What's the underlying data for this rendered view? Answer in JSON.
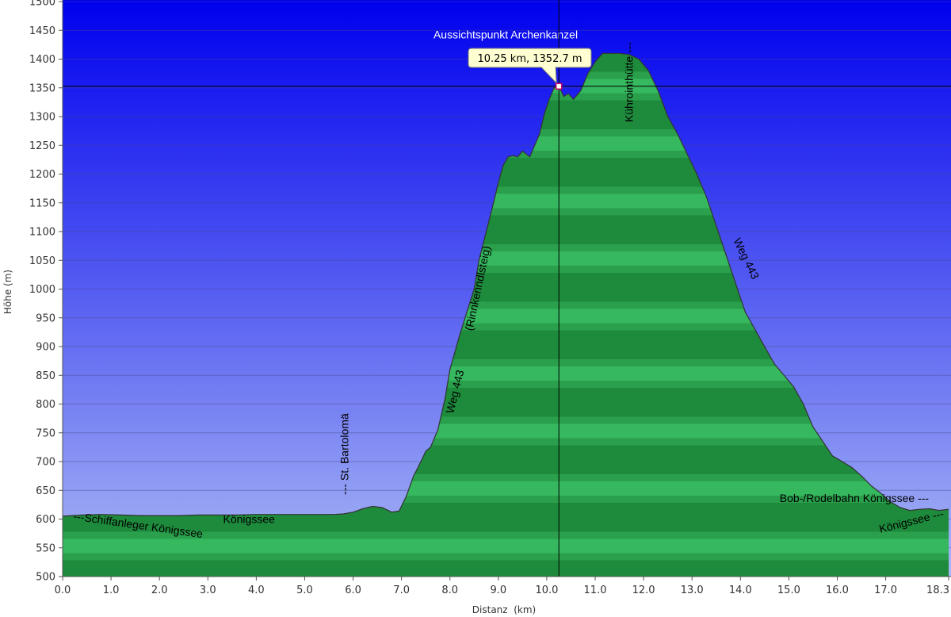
{
  "chart_data": {
    "type": "area",
    "xlabel": "Distanz  (km)",
    "ylabel": "Höhe (m)",
    "xlim": [
      0,
      18.3
    ],
    "ylim": [
      500,
      1500
    ],
    "x_ticks": [
      0,
      1,
      2,
      3,
      4,
      5,
      6,
      7,
      8,
      9,
      10,
      11,
      12,
      13,
      14,
      15,
      16,
      17,
      18.3
    ],
    "x_tick_labels": [
      "0.0",
      "1.0",
      "2.0",
      "3.0",
      "4.0",
      "5.0",
      "6.0",
      "7.0",
      "8.0",
      "9.0",
      "10.0",
      "11.0",
      "12.0",
      "13.0",
      "14.0",
      "15.0",
      "16.0",
      "17.0",
      "18.3"
    ],
    "y_ticks": [
      500,
      550,
      600,
      650,
      700,
      750,
      800,
      850,
      900,
      950,
      1000,
      1050,
      1100,
      1150,
      1200,
      1250,
      1300,
      1350,
      1400,
      1450,
      1500
    ],
    "grid": true,
    "colors": {
      "sky_top": "#0000ee",
      "sky_bottom": "#a9b8f5",
      "fill_dark": "#1e8a3c",
      "fill_light": "#3cc065",
      "line": "#333333"
    },
    "profile": {
      "x": [
        0,
        0.4,
        0.8,
        1.2,
        1.6,
        2.0,
        2.4,
        2.8,
        3.2,
        3.6,
        4.0,
        4.4,
        4.8,
        5.2,
        5.6,
        5.8,
        6.0,
        6.2,
        6.4,
        6.6,
        6.8,
        6.95,
        7.1,
        7.25,
        7.4,
        7.5,
        7.6,
        7.75,
        7.9,
        8.0,
        8.1,
        8.2,
        8.35,
        8.5,
        8.6,
        8.75,
        8.9,
        9.0,
        9.1,
        9.2,
        9.3,
        9.4,
        9.5,
        9.65,
        9.75,
        9.85,
        9.95,
        10.05,
        10.15,
        10.25,
        10.35,
        10.45,
        10.55,
        10.7,
        10.85,
        11.0,
        11.15,
        11.3,
        11.5,
        11.7,
        11.9,
        12.1,
        12.3,
        12.5,
        12.7,
        12.9,
        13.1,
        13.3,
        13.5,
        13.7,
        13.9,
        14.1,
        14.3,
        14.5,
        14.7,
        14.9,
        15.1,
        15.3,
        15.5,
        15.7,
        15.9,
        16.1,
        16.3,
        16.5,
        16.7,
        16.9,
        17.1,
        17.3,
        17.5,
        17.7,
        17.9,
        18.1,
        18.3
      ],
      "y": [
        605,
        607,
        608,
        607,
        606,
        606,
        606,
        607,
        607,
        607,
        608,
        608,
        608,
        608,
        608,
        609,
        612,
        618,
        622,
        620,
        612,
        614,
        640,
        675,
        700,
        718,
        725,
        755,
        810,
        860,
        890,
        920,
        960,
        1000,
        1050,
        1100,
        1150,
        1185,
        1215,
        1230,
        1232,
        1230,
        1240,
        1230,
        1250,
        1270,
        1305,
        1330,
        1350,
        1352.7,
        1335,
        1340,
        1330,
        1345,
        1375,
        1395,
        1410,
        1410,
        1410,
        1408,
        1400,
        1380,
        1345,
        1300,
        1270,
        1235,
        1200,
        1160,
        1110,
        1060,
        1010,
        960,
        930,
        900,
        870,
        850,
        830,
        800,
        760,
        735,
        710,
        700,
        690,
        675,
        658,
        645,
        630,
        620,
        615,
        617,
        618,
        615,
        617
      ]
    },
    "marker": {
      "x": 10.25,
      "y": 1352.7,
      "label": "10.25 km, 1352.7 m"
    },
    "annotations": [
      {
        "text": "Aussichtspunkt Archenkanzel",
        "x": 9.15,
        "y": 1436,
        "angle": 0,
        "color": "white"
      },
      {
        "text": "Kührointhütte ---",
        "x": 11.78,
        "y": 1360,
        "angle": -90,
        "color": "black"
      },
      {
        "text": "(Rinnkenndlsteig)",
        "x": 8.65,
        "y": 1000,
        "angle": -78,
        "color": "black"
      },
      {
        "text": "Weg 443",
        "x": 8.18,
        "y": 820,
        "angle": -76,
        "color": "black"
      },
      {
        "text": "Weg 443",
        "x": 14.05,
        "y": 1050,
        "angle": 64,
        "color": "black"
      },
      {
        "text": "--- St. Bartolomä",
        "x": 5.9,
        "y": 713,
        "angle": -90,
        "color": "black"
      },
      {
        "text": "Königssee",
        "x": 3.85,
        "y": 593,
        "angle": 0,
        "color": "black"
      },
      {
        "text": "---Schiffanleger Königssee",
        "x": 1.55,
        "y": 583,
        "angle": 8,
        "color": "black"
      },
      {
        "text": "Bob-/Rodelbahn Königssee ---",
        "x": 16.35,
        "y": 630,
        "angle": 0,
        "color": "black"
      },
      {
        "text": "Königssee ---",
        "x": 17.55,
        "y": 590,
        "angle": -14,
        "color": "black"
      }
    ]
  }
}
